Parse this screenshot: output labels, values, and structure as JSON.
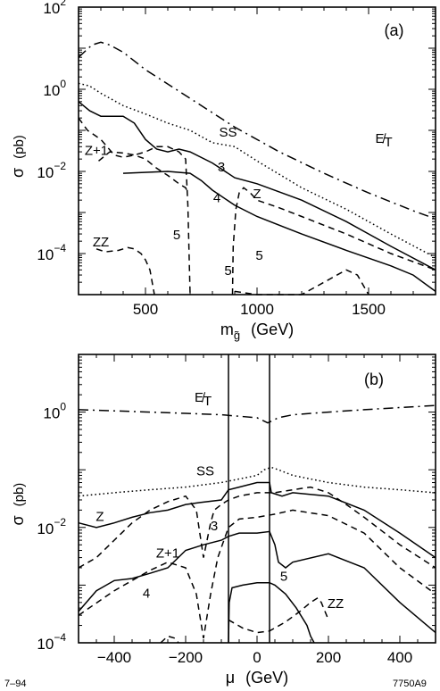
{
  "chart_data": [
    {
      "type": "line",
      "panel_label": "(a)",
      "xlabel": "m̃g (GeV)",
      "xlabel_parts": {
        "m": "m",
        "sub": "g̃",
        "unit": "(GeV)"
      },
      "ylabel": "σ (pb)",
      "ylabel_parts": {
        "sigma": "σ",
        "unit": "(pb)"
      },
      "x_scale": "linear",
      "y_scale": "log",
      "xlim": [
        200,
        1800
      ],
      "ylim": [
        1e-05,
        100
      ],
      "x_ticks": [
        500,
        1000,
        1500
      ],
      "x_tick_labels": [
        "500",
        "1000",
        "1500"
      ],
      "y_ticks": [
        0.0001,
        0.01,
        1,
        100
      ],
      "y_tick_labels": [
        {
          "base": "10",
          "exp": "−4"
        },
        {
          "base": "10",
          "exp": "−2"
        },
        {
          "base": "10",
          "exp": "0"
        },
        {
          "base": "10",
          "exp": "2"
        }
      ],
      "series": [
        {
          "style": "dashdot",
          "x": [
            200,
            260,
            300,
            340,
            400,
            500,
            700,
            900,
            1100,
            1300,
            1500,
            1700,
            1800
          ],
          "y": [
            6,
            12,
            14,
            12,
            8,
            3,
            0.6,
            0.12,
            0.03,
            0.009,
            0.003,
            0.0011,
            0.0007
          ]
        },
        {
          "style": "dotted",
          "x": [
            200,
            250,
            300,
            400,
            500,
            600,
            700,
            800,
            900,
            1000,
            1200,
            1400,
            1600,
            1800
          ],
          "y": [
            1.4,
            1.2,
            0.8,
            0.4,
            0.25,
            0.15,
            0.1,
            0.05,
            0.04,
            0.018,
            0.004,
            0.0012,
            0.0003,
            8e-05
          ]
        },
        {
          "style": "solid",
          "x": [
            200,
            250,
            300,
            350,
            400,
            450,
            500,
            550,
            600,
            650,
            700,
            800,
            900,
            1000,
            1200,
            1400,
            1600,
            1800
          ],
          "y": [
            0.5,
            0.3,
            0.22,
            0.22,
            0.22,
            0.15,
            0.06,
            0.035,
            0.03,
            0.035,
            0.03,
            0.016,
            0.007,
            0.005,
            0.002,
            0.0006,
            0.00015,
            4e-05
          ]
        },
        {
          "style": "solid",
          "x": [
            400,
            600,
            700,
            750,
            800,
            900,
            1000,
            1200,
            1400,
            1600,
            1700,
            1800
          ],
          "y": [
            0.009,
            0.01,
            0.009,
            0.006,
            0.0035,
            0.0015,
            0.0008,
            0.0003,
            0.00012,
            5e-05,
            3e-05,
            1.2e-05
          ]
        },
        {
          "style": "dashed",
          "x": [
            200,
            240,
            300,
            360,
            400,
            450,
            500,
            550,
            600,
            650,
            680,
            690,
            700
          ],
          "y": [
            0.2,
            0.1,
            0.06,
            0.025,
            0.022,
            0.025,
            0.03,
            0.04,
            0.04,
            0.03,
            0.02,
            0.0015,
            1e-05
          ]
        },
        {
          "style": "dashed",
          "x": [
            290,
            340,
            400,
            450,
            500,
            550,
            600,
            650,
            680,
            690
          ],
          "y": [
            0.018,
            0.03,
            0.028,
            0.025,
            0.02,
            0.012,
            0.008,
            0.005,
            0.004,
            0.003
          ]
        },
        {
          "style": "dashed",
          "x": [
            890,
            893,
            905,
            920,
            940,
            970,
            1000,
            1100,
            1200,
            1400,
            1600,
            1800
          ],
          "y": [
            1e-05,
            0.00015,
            0.0012,
            0.003,
            0.004,
            0.003,
            0.002,
            0.0013,
            0.0008,
            0.0003,
            0.0001,
            4e-05
          ]
        },
        {
          "style": "dashed",
          "x": [
            280,
            320,
            380,
            420,
            450,
            480,
            500,
            520,
            540
          ],
          "y": [
            0.00013,
            0.00011,
            0.00012,
            0.00014,
            0.00013,
            0.0001,
            7e-05,
            4e-05,
            1e-05
          ]
        },
        {
          "style": "dashed",
          "x": [
            900,
            1000,
            1100,
            1200,
            1300,
            1400,
            1450,
            1500
          ],
          "y": [
            1.2e-05,
            1e-05,
            8e-06,
            8e-06,
            2e-05,
            4e-05,
            3e-05,
            1e-05
          ]
        }
      ],
      "annotations": [
        {
          "text": "(a)",
          "x": 1570,
          "y": 20
        },
        {
          "text": "SS",
          "x": 870,
          "y": 0.07
        },
        {
          "text": "E̸T",
          "x": 1530,
          "y": 0.05
        },
        {
          "text": "Z+1",
          "x": 280,
          "y": 0.025
        },
        {
          "text": "3",
          "x": 840,
          "y": 0.01
        },
        {
          "text": "Z",
          "x": 1000,
          "y": 0.0022
        },
        {
          "text": "4",
          "x": 820,
          "y": 0.0018
        },
        {
          "text": "ZZ",
          "x": 300,
          "y": 0.00015
        },
        {
          "text": "5",
          "x": 640,
          "y": 0.00022
        },
        {
          "text": "5",
          "x": 870,
          "y": 3e-05
        },
        {
          "text": "5",
          "x": 1010,
          "y": 7e-05
        }
      ]
    },
    {
      "type": "line",
      "panel_label": "(b)",
      "xlabel": "μ (GeV)",
      "xlabel_parts": {
        "mu": "μ",
        "unit": "(GeV)"
      },
      "ylabel": "σ (pb)",
      "ylabel_parts": {
        "sigma": "σ",
        "unit": "(pb)"
      },
      "x_scale": "linear",
      "y_scale": "log",
      "xlim": [
        -500,
        500
      ],
      "ylim": [
        0.0001,
        10
      ],
      "x_ticks": [
        -400,
        -200,
        0,
        200,
        400
      ],
      "x_tick_labels": [
        "−400",
        "−200",
        "0",
        "200",
        "400"
      ],
      "y_ticks": [
        0.0001,
        0.01,
        1
      ],
      "y_tick_labels": [
        {
          "base": "10",
          "exp": "−4"
        },
        {
          "base": "10",
          "exp": "−2"
        },
        {
          "base": "10",
          "exp": "0"
        }
      ],
      "vertical_lines": [
        -80,
        35
      ],
      "series": [
        {
          "style": "dashdot",
          "x": [
            -500,
            -400,
            -300,
            -200,
            -100,
            0,
            30,
            60,
            100,
            200,
            300,
            400,
            500
          ],
          "y": [
            1.1,
            1.05,
            1.0,
            0.95,
            0.9,
            0.8,
            0.65,
            0.8,
            0.9,
            1.0,
            1.1,
            1.2,
            1.3
          ]
        },
        {
          "style": "dotted",
          "x": [
            -500,
            -400,
            -300,
            -200,
            -100,
            0,
            20,
            40,
            60,
            100,
            200,
            300,
            400,
            500
          ],
          "y": [
            0.035,
            0.04,
            0.045,
            0.05,
            0.06,
            0.08,
            0.1,
            0.11,
            0.1,
            0.08,
            0.06,
            0.05,
            0.045,
            0.04
          ]
        },
        {
          "style": "solid",
          "x": [
            -500,
            -450,
            -400,
            -350,
            -300,
            -250,
            -200,
            -160,
            -100,
            -80,
            -50,
            0,
            35,
            40,
            70,
            100,
            200,
            300,
            400,
            500
          ],
          "y": [
            0.012,
            0.01,
            0.012,
            0.015,
            0.018,
            0.02,
            0.025,
            0.027,
            0.03,
            0.045,
            0.05,
            0.06,
            0.06,
            0.04,
            0.035,
            0.04,
            0.035,
            0.02,
            0.008,
            0.003
          ]
        },
        {
          "style": "dashed",
          "x": [
            -500,
            -450,
            -400,
            -350,
            -300,
            -250,
            -200,
            -170,
            -150,
            -130,
            -120,
            -100,
            -80,
            -50,
            0,
            50,
            100,
            150,
            200,
            250,
            300,
            400,
            500
          ],
          "y": [
            0.002,
            0.003,
            0.006,
            0.012,
            0.02,
            0.028,
            0.035,
            0.02,
            0.003,
            0.012,
            0.02,
            0.025,
            0.03,
            0.035,
            0.04,
            0.04,
            0.045,
            0.05,
            0.04,
            0.025,
            0.015,
            0.005,
            0.002
          ]
        },
        {
          "style": "dashed",
          "x": [
            -500,
            -400,
            -300,
            -250,
            -200,
            -170,
            -150,
            -130,
            -110,
            -80,
            -50,
            0,
            50,
            100,
            200,
            300,
            400,
            500
          ],
          "y": [
            0.0003,
            0.0008,
            0.0018,
            0.0025,
            0.002,
            0.0007,
            0.00012,
            0.0007,
            0.003,
            0.01,
            0.014,
            0.015,
            0.017,
            0.02,
            0.016,
            0.008,
            0.002,
            0.0007
          ]
        },
        {
          "style": "solid",
          "x": [
            -500,
            -450,
            -400,
            -350,
            -300,
            -250,
            -200,
            -150,
            -100,
            -80,
            -50,
            0,
            35,
            50,
            60,
            80,
            100,
            200,
            300,
            400,
            500
          ],
          "y": [
            0.00035,
            0.0008,
            0.0012,
            0.0013,
            0.0016,
            0.002,
            0.004,
            0.005,
            0.006,
            0.007,
            0.008,
            0.008,
            0.0085,
            0.005,
            0.0025,
            0.002,
            0.0025,
            0.0035,
            0.002,
            0.0005,
            0.00015
          ]
        },
        {
          "style": "solid",
          "x": [
            -80,
            -78,
            -70,
            -40,
            0,
            35,
            50,
            80,
            110,
            140,
            150,
            160
          ],
          "y": [
            0.0001,
            0.0005,
            0.0009,
            0.001,
            0.0011,
            0.0011,
            0.001,
            0.0007,
            0.0004,
            0.0002,
            0.00013,
            0.0001
          ]
        },
        {
          "style": "dashed",
          "x": [
            -80,
            -40,
            0,
            35,
            80,
            120,
            150,
            170,
            180,
            200
          ],
          "y": [
            0.00025,
            0.00018,
            0.00015,
            0.00016,
            0.00023,
            0.00035,
            0.0005,
            0.0006,
            0.0005,
            0.00025
          ]
        },
        {
          "style": "dashed",
          "x": [
            -270,
            -250,
            -230,
            -220
          ],
          "y": [
            0.0001,
            0.00013,
            0.00012,
            0.0001
          ]
        }
      ],
      "annotations": [
        {
          "text": "(b)",
          "x": 300,
          "y": 3.0
        },
        {
          "text": "E̸T",
          "x": -175,
          "y": 1.5
        },
        {
          "text": "SS",
          "x": -145,
          "y": 0.08
        },
        {
          "text": "Z",
          "x": -440,
          "y": 0.013
        },
        {
          "text": "3",
          "x": -120,
          "y": 0.009
        },
        {
          "text": "Z+1",
          "x": -250,
          "y": 0.003
        },
        {
          "text": "4",
          "x": -310,
          "y": 0.0006
        },
        {
          "text": "5",
          "x": 75,
          "y": 0.0012
        },
        {
          "text": "ZZ",
          "x": 220,
          "y": 0.0004
        }
      ]
    }
  ],
  "footer": {
    "left": "7–94",
    "right": "7750A9"
  }
}
